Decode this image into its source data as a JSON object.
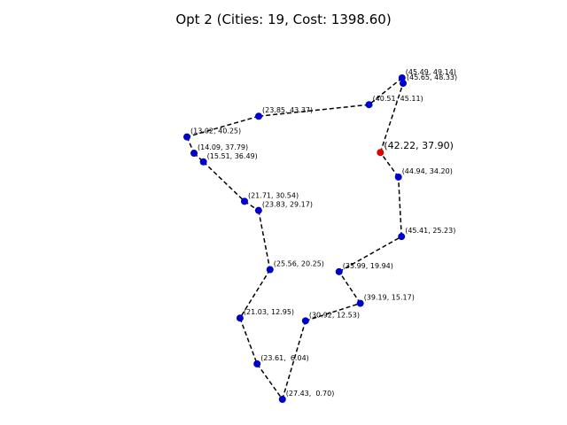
{
  "chart_data": {
    "type": "scatter",
    "title": "Opt 2 (Cities: 19, Cost: 1398.60)",
    "xlabel": "",
    "ylabel": "",
    "axes_visible": false,
    "grid": false,
    "route_style": "dashed",
    "colors": {
      "city": "#0000cc",
      "start": "#dd0000",
      "route": "#000000"
    },
    "start": {
      "x": 42.22,
      "y": 37.9,
      "label": "(42.22, 37.90)"
    },
    "route": [
      {
        "x": 42.22,
        "y": 37.9,
        "label": "(42.22, 37.90)"
      },
      {
        "x": 45.65,
        "y": 48.33,
        "label": "(45.65, 48.33)"
      },
      {
        "x": 45.49,
        "y": 49.14,
        "label": "(45.49, 49.14)"
      },
      {
        "x": 40.51,
        "y": 45.11,
        "label": "(40.51, 45.11)"
      },
      {
        "x": 23.85,
        "y": 43.37,
        "label": "(23.85, 43.37)"
      },
      {
        "x": 13.02,
        "y": 40.25,
        "label": "(13.02, 40.25)"
      },
      {
        "x": 14.09,
        "y": 37.79,
        "label": "(14.09, 37.79)"
      },
      {
        "x": 15.51,
        "y": 36.49,
        "label": "(15.51, 36.49)"
      },
      {
        "x": 21.71,
        "y": 30.54,
        "label": "(21.71, 30.54)"
      },
      {
        "x": 23.83,
        "y": 29.17,
        "label": "(23.83, 29.17)"
      },
      {
        "x": 25.56,
        "y": 20.25,
        "label": "(25.56, 20.25)"
      },
      {
        "x": 21.03,
        "y": 12.95,
        "label": "(21.03, 12.95)"
      },
      {
        "x": 23.61,
        "y": 6.04,
        "label": "(23.61,  6.04)"
      },
      {
        "x": 27.43,
        "y": 0.7,
        "label": "(27.43,  0.70)"
      },
      {
        "x": 30.92,
        "y": 12.53,
        "label": "(30.92, 12.53)"
      },
      {
        "x": 39.19,
        "y": 15.17,
        "label": "(39.19, 15.17)"
      },
      {
        "x": 35.99,
        "y": 19.94,
        "label": "(35.99, 19.94)"
      },
      {
        "x": 45.41,
        "y": 25.23,
        "label": "(45.41, 25.23)"
      },
      {
        "x": 44.94,
        "y": 34.2,
        "label": "(44.94, 34.20)"
      }
    ]
  }
}
